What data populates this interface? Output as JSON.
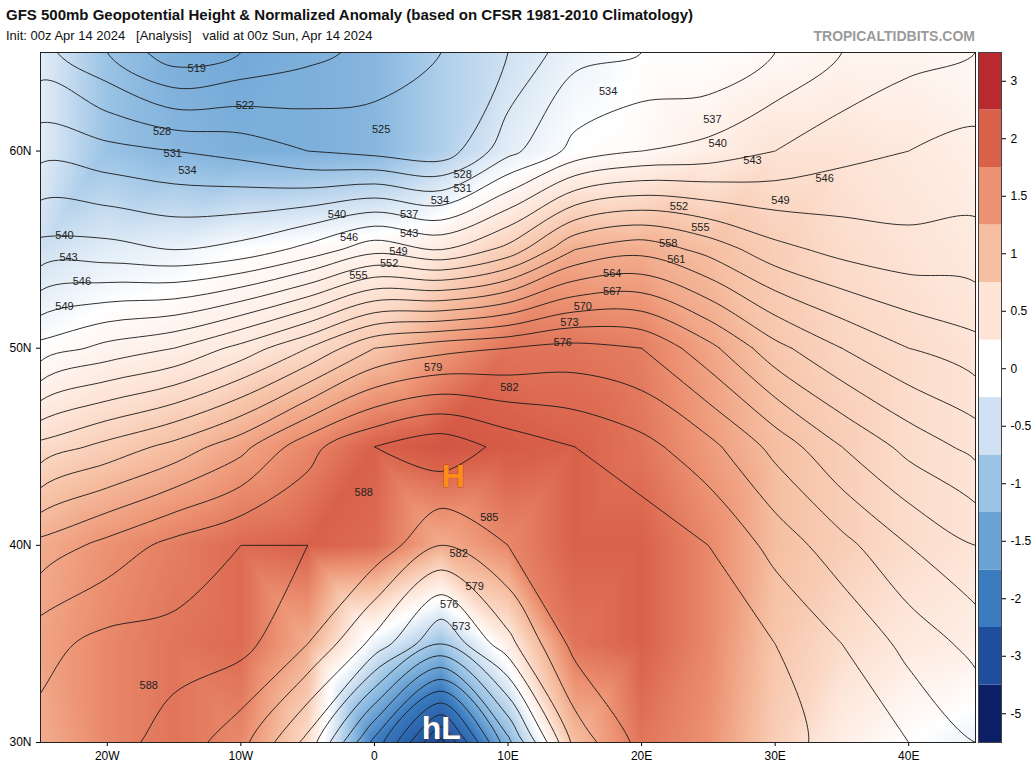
{
  "chart_data": {
    "type": "map",
    "title": "GFS 500mb Geopotential Height & Normalized Anomaly (based on CFSR 1981-2010 Climatology)",
    "subtitle": "Init: 00z Apr 14 2024   [Analysis]   valid at 00z Sun, Apr 14 2024",
    "credit": "TROPICALTIDBITS.COM",
    "xlim": [
      -25,
      45
    ],
    "ylim": [
      30,
      65
    ],
    "xticks": [
      {
        "value": -20,
        "label": "20W"
      },
      {
        "value": -10,
        "label": "10W"
      },
      0,
      {
        "value": 10,
        "label": "10E"
      },
      {
        "value": 20,
        "label": "20E"
      },
      {
        "value": 30,
        "label": "30E"
      },
      {
        "value": 40,
        "label": "40E"
      }
    ],
    "yticks": [
      {
        "value": 30,
        "label": "30N"
      },
      {
        "value": 40,
        "label": "40N"
      },
      {
        "value": 50,
        "label": "50N"
      },
      {
        "value": 60,
        "label": "60N"
      }
    ],
    "lons": [
      -25,
      -20,
      -15,
      -10,
      -5,
      0,
      5,
      10,
      15,
      20,
      25,
      30,
      35,
      40,
      45
    ],
    "lats": [
      30,
      35,
      40,
      45,
      50,
      55,
      60,
      65
    ],
    "heights": [
      [
        589,
        589,
        587,
        583,
        575,
        560,
        545,
        563,
        580,
        586,
        587,
        586,
        584,
        582,
        579
      ],
      [
        587,
        589,
        589,
        589,
        585,
        578,
        570,
        578,
        586,
        587,
        587,
        585,
        582,
        578,
        575
      ],
      [
        580,
        583,
        586,
        588,
        588,
        587,
        582,
        585,
        587,
        587,
        585,
        581,
        577,
        573,
        570
      ],
      [
        568,
        571,
        574,
        578,
        584,
        588,
        590,
        587,
        585,
        583,
        580,
        575,
        570,
        566,
        563
      ],
      [
        553,
        556,
        558,
        562,
        567,
        573,
        575,
        576,
        577,
        576,
        571,
        565,
        561,
        558,
        556
      ],
      [
        541,
        541,
        540,
        541,
        544,
        548,
        546,
        550,
        558,
        560,
        557,
        553,
        551,
        550,
        550
      ],
      [
        533,
        532,
        531,
        530,
        528,
        527,
        526,
        533,
        538,
        540,
        541,
        543,
        545,
        546,
        547
      ],
      [
        526,
        522,
        517,
        519,
        521,
        523,
        525,
        528,
        533,
        534,
        534,
        537,
        540,
        542,
        543
      ]
    ],
    "contour_levels": [
      519,
      522,
      525,
      528,
      531,
      534,
      537,
      540,
      543,
      546,
      549,
      552,
      555,
      558,
      561,
      564,
      567,
      570,
      573,
      576,
      579,
      582,
      585,
      588
    ],
    "anomaly": [
      [
        1.2,
        1.6,
        1.8,
        1.6,
        0.6,
        -2.0,
        -3.2,
        -1.2,
        1.0,
        1.8,
        1.5,
        0.8,
        0.3,
        0.0,
        -0.2
      ],
      [
        1.3,
        1.6,
        1.8,
        1.9,
        1.2,
        -0.2,
        -1.0,
        0.3,
        1.8,
        2.0,
        1.6,
        0.9,
        0.6,
        0.4,
        0.3
      ],
      [
        1.2,
        1.5,
        1.7,
        1.9,
        2.0,
        1.9,
        1.2,
        1.6,
        2.0,
        2.0,
        1.6,
        1.0,
        0.8,
        0.6,
        0.5
      ],
      [
        0.6,
        0.8,
        1.0,
        1.3,
        1.6,
        2.0,
        2.2,
        2.1,
        2.0,
        1.8,
        1.4,
        1.0,
        0.8,
        0.6,
        0.5
      ],
      [
        0.0,
        0.2,
        0.3,
        0.4,
        0.6,
        0.9,
        1.4,
        1.8,
        1.8,
        1.7,
        1.3,
        0.9,
        0.7,
        0.6,
        0.5
      ],
      [
        -0.5,
        -0.3,
        -0.2,
        0.0,
        0.1,
        0.2,
        0.4,
        0.8,
        1.2,
        1.2,
        1.0,
        0.8,
        0.6,
        0.5,
        0.4
      ],
      [
        -0.3,
        -1.0,
        -1.2,
        -1.3,
        -1.3,
        -1.2,
        -0.8,
        -0.3,
        0.0,
        0.1,
        0.3,
        0.5,
        0.5,
        0.4,
        0.3
      ],
      [
        -0.3,
        -1.0,
        -1.3,
        -1.4,
        -1.3,
        -1.2,
        -0.8,
        -0.5,
        -0.2,
        0.0,
        0.0,
        0.1,
        0.2,
        0.2,
        0.1
      ]
    ],
    "colorbar": {
      "ticks": [
        -5,
        -3,
        -2,
        -1.5,
        -1,
        -0.5,
        0,
        0.5,
        1,
        1.5,
        2,
        3
      ],
      "colors": [
        "#0c1f66",
        "#1f4e9c",
        "#3b7cc0",
        "#6aa2d4",
        "#9ac3e5",
        "#cfe1f2",
        "#ffffff",
        "#fde4d6",
        "#f6bfa2",
        "#ec9272",
        "#d9614a",
        "#b82a2d"
      ]
    },
    "contour_labels": [
      {
        "lon": -13.3,
        "lat": 64.2,
        "value": 519
      },
      {
        "lon": -9.7,
        "lat": 62.3,
        "value": 522
      },
      {
        "lon": 0.5,
        "lat": 61.1,
        "value": 525
      },
      {
        "lon": -15.9,
        "lat": 61.0,
        "value": 528
      },
      {
        "lon": 6.6,
        "lat": 58.8,
        "value": 528
      },
      {
        "lon": -15.1,
        "lat": 59.9,
        "value": 531
      },
      {
        "lon": 6.6,
        "lat": 58.1,
        "value": 531
      },
      {
        "lon": -14.0,
        "lat": 59.0,
        "value": 534
      },
      {
        "lon": 4.9,
        "lat": 57.5,
        "value": 534
      },
      {
        "lon": 17.5,
        "lat": 63.0,
        "value": 534
      },
      {
        "lon": 2.6,
        "lat": 56.8,
        "value": 537
      },
      {
        "lon": 25.3,
        "lat": 61.6,
        "value": 537
      },
      {
        "lon": -23.2,
        "lat": 55.7,
        "value": 540
      },
      {
        "lon": -2.8,
        "lat": 56.8,
        "value": 540
      },
      {
        "lon": 25.7,
        "lat": 60.4,
        "value": 540
      },
      {
        "lon": -22.9,
        "lat": 54.6,
        "value": 543
      },
      {
        "lon": 2.6,
        "lat": 55.8,
        "value": 543
      },
      {
        "lon": 28.3,
        "lat": 59.5,
        "value": 543
      },
      {
        "lon": -21.9,
        "lat": 53.4,
        "value": 546
      },
      {
        "lon": -1.9,
        "lat": 55.6,
        "value": 546
      },
      {
        "lon": 33.7,
        "lat": 58.6,
        "value": 546
      },
      {
        "lon": -23.2,
        "lat": 52.1,
        "value": 549
      },
      {
        "lon": 1.8,
        "lat": 54.9,
        "value": 549
      },
      {
        "lon": 30.4,
        "lat": 57.5,
        "value": 549
      },
      {
        "lon": 1.1,
        "lat": 54.3,
        "value": 552
      },
      {
        "lon": 22.8,
        "lat": 57.2,
        "value": 552
      },
      {
        "lon": -1.2,
        "lat": 53.7,
        "value": 555
      },
      {
        "lon": 24.4,
        "lat": 56.1,
        "value": 555
      },
      {
        "lon": 22.0,
        "lat": 55.3,
        "value": 558
      },
      {
        "lon": 22.6,
        "lat": 54.5,
        "value": 561
      },
      {
        "lon": 17.8,
        "lat": 53.8,
        "value": 564
      },
      {
        "lon": 17.8,
        "lat": 52.9,
        "value": 567
      },
      {
        "lon": 15.6,
        "lat": 52.1,
        "value": 570
      },
      {
        "lon": 14.6,
        "lat": 51.3,
        "value": 573
      },
      {
        "lon": 14.1,
        "lat": 50.3,
        "value": 576
      },
      {
        "lon": 4.4,
        "lat": 49.0,
        "value": 579
      },
      {
        "lon": 7.5,
        "lat": 37.9,
        "value": 579
      },
      {
        "lon": 10.1,
        "lat": 48.0,
        "value": 582
      },
      {
        "lon": 6.3,
        "lat": 39.6,
        "value": 582
      },
      {
        "lon": 8.6,
        "lat": 41.4,
        "value": 585
      },
      {
        "lon": -0.8,
        "lat": 42.7,
        "value": 588
      },
      {
        "lon": -16.9,
        "lat": 32.9,
        "value": 588
      },
      {
        "lon": 5.6,
        "lat": 37.0,
        "value": 576
      },
      {
        "lon": 6.5,
        "lat": 35.9,
        "value": 573
      }
    ],
    "centers": [
      {
        "label": "H",
        "lon": 5.9,
        "lat": 43.5,
        "color": "#ff8c1a"
      },
      {
        "label": "hL",
        "lon": 5.0,
        "lat": 30.7,
        "color": "#ffffff"
      }
    ]
  }
}
